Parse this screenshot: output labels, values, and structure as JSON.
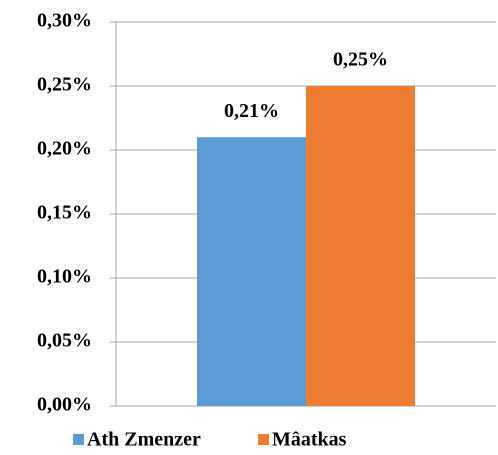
{
  "chart_data": {
    "type": "bar",
    "categories": [
      null
    ],
    "series": [
      {
        "name": "Ath Zmenzer",
        "color": "#5b9bd5",
        "values": [
          0.21
        ],
        "value_labels": [
          "0,21%"
        ]
      },
      {
        "name": "Mâatkas",
        "color": "#ed7d31",
        "values": [
          0.25
        ],
        "value_labels": [
          "0,25%"
        ]
      }
    ],
    "ylim": [
      0,
      0.3
    ],
    "yticks": [
      {
        "value": 0,
        "label": "0,00%"
      },
      {
        "value": 0.05,
        "label": "0,05%"
      },
      {
        "value": 0.1,
        "label": "0,10%"
      },
      {
        "value": 0.15,
        "label": "0,15%"
      },
      {
        "value": 0.2,
        "label": "0,20%"
      },
      {
        "value": 0.25,
        "label": "0,25%"
      },
      {
        "value": 0.3,
        "label": "0,30%"
      }
    ],
    "grid": true,
    "legend": "bottom"
  }
}
